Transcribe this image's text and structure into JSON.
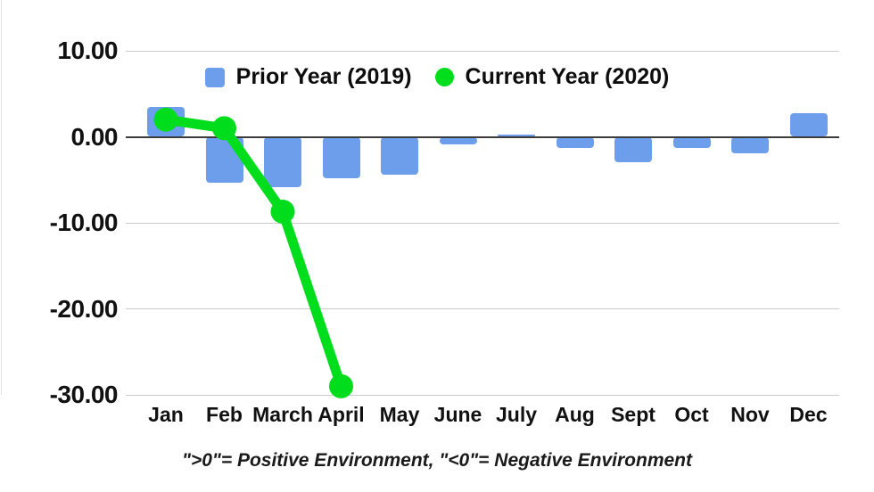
{
  "legend": {
    "items": [
      {
        "label": "Prior Year (2019)",
        "marker": "square",
        "color": "#6d9eeb"
      },
      {
        "label": "Current Year (2020)",
        "marker": "circle",
        "color": "#00dd1c"
      }
    ]
  },
  "footer": {
    "note": "\">0\"= Positive Environment, \"<0\"= Negative Environment"
  },
  "chart_data": {
    "type": "bar",
    "title": "",
    "xlabel": "",
    "ylabel": "",
    "categories": [
      "Jan",
      "Feb",
      "March",
      "April",
      "May",
      "June",
      "July",
      "Aug",
      "Sept",
      "Oct",
      "Nov",
      "Dec"
    ],
    "series": [
      {
        "name": "Prior Year (2019)",
        "type": "bar",
        "color": "#6d9eeb",
        "values": [
          3.5,
          -5.3,
          -5.9,
          -4.8,
          -4.4,
          -0.9,
          0.3,
          -1.3,
          -3.0,
          -1.3,
          -1.9,
          2.7
        ]
      },
      {
        "name": "Current Year (2020)",
        "type": "line",
        "color": "#00dd1c",
        "values": [
          2.0,
          1.0,
          -8.7,
          -29.0,
          null,
          null,
          null,
          null,
          null,
          null,
          null,
          null
        ]
      }
    ],
    "ylim": [
      -30,
      10
    ],
    "yticks": [
      10,
      0,
      -10,
      -20,
      -30
    ],
    "ytick_labels": [
      "10.00",
      "0.00",
      "-10.00",
      "-20.00",
      "-30.00"
    ],
    "grid": true,
    "zero_line": true,
    "legend_position": "top-center"
  }
}
